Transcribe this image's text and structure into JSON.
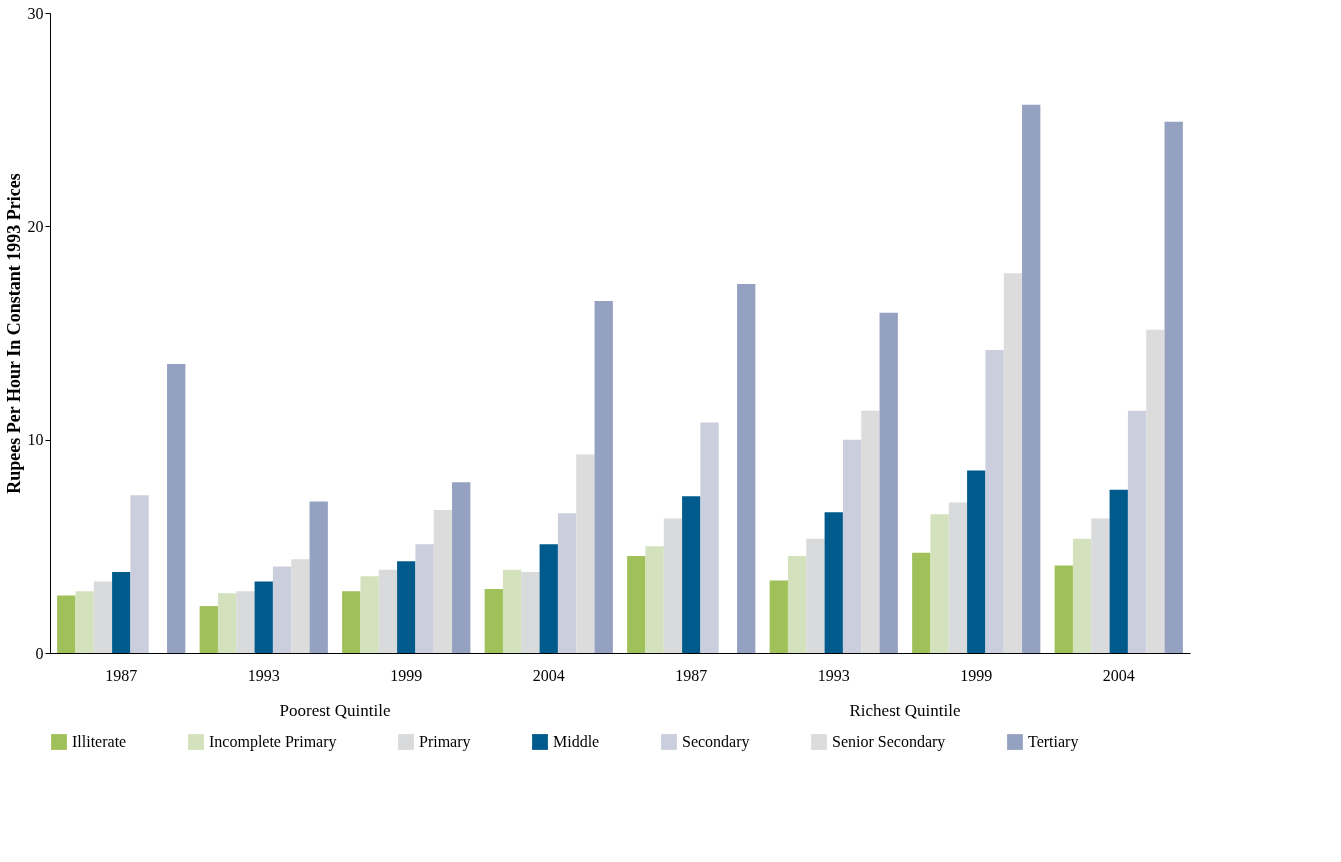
{
  "chart_data": {
    "type": "bar",
    "ylabel": "Rupees Per Hour In Constant 1993 Prices",
    "categories": [
      "1987",
      "1993",
      "1999",
      "2004",
      "1987",
      "1993",
      "1999",
      "2004"
    ],
    "series": [
      {
        "name": "Illiterate",
        "color": "#a0c15a",
        "values": [
          2.7,
          2.2,
          2.9,
          3.0,
          4.55,
          3.4,
          4.7,
          4.1
        ]
      },
      {
        "name": "Incomplete Primary",
        "color": "#d3e2bc",
        "values": [
          2.9,
          2.8,
          3.6,
          3.9,
          5.0,
          4.55,
          6.5,
          5.35
        ]
      },
      {
        "name": "Primary",
        "color": "#d9dadc",
        "values": [
          3.35,
          2.9,
          3.9,
          3.8,
          6.3,
          5.35,
          7.05,
          6.3
        ]
      },
      {
        "name": "Middle",
        "color": "#005a8c",
        "values": [
          3.8,
          3.35,
          4.3,
          5.1,
          7.35,
          6.6,
          8.55,
          7.65
        ]
      },
      {
        "name": "Secondary",
        "color": "#cbcfdd",
        "values": [
          7.4,
          4.05,
          5.1,
          6.55,
          10.8,
          10.0,
          14.2,
          11.35
        ]
      },
      {
        "name": "Senior Secondary",
        "color": "#dcdcdd",
        "values": [
          null,
          4.4,
          6.7,
          9.3,
          null,
          11.35,
          17.8,
          15.15
        ]
      },
      {
        "name": "Tertiary",
        "color": "#95a1c0",
        "values": [
          13.55,
          7.1,
          8.0,
          16.5,
          17.3,
          15.95,
          25.7,
          24.9
        ]
      }
    ],
    "ylim": [
      0,
      30
    ],
    "yticks": [
      0,
      10,
      20,
      30
    ],
    "grid": false,
    "legend": "bottom",
    "annotations": [
      "Poorest Quintile",
      "Richest Quintile"
    ]
  }
}
